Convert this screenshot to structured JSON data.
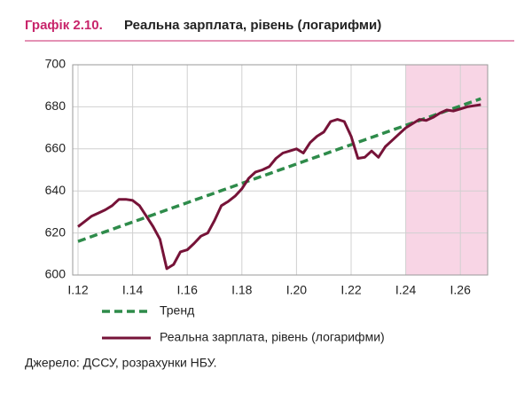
{
  "chart_data": {
    "type": "line",
    "title_label": "Графік 2.10.",
    "title": "Реальна зарплата, рівень (логарифми)",
    "source": "Джерело: ДССУ, розрахунки НБУ.",
    "categories": [
      "I.12",
      null,
      null,
      null,
      null,
      null,
      null,
      null,
      "I.14",
      null,
      null,
      null,
      null,
      null,
      null,
      null,
      "I.16",
      null,
      null,
      null,
      null,
      null,
      null,
      null,
      "I.18",
      null,
      null,
      null,
      null,
      null,
      null,
      null,
      "I.20",
      null,
      null,
      null,
      null,
      null,
      null,
      null,
      "I.22",
      null,
      null,
      null,
      null,
      null,
      null,
      null,
      "I.24",
      null,
      null,
      null,
      null,
      null,
      null,
      null,
      "I.26",
      null,
      null,
      null
    ],
    "series": [
      {
        "name": "Тренд",
        "color": "#2e8b4a",
        "dashed": true,
        "values": [
          616,
          617.15,
          618.3,
          619.45,
          620.6,
          621.75,
          622.9,
          624.05,
          625.2,
          626.35,
          627.5,
          628.65,
          629.8,
          630.95,
          632.1,
          633.25,
          634.4,
          635.55,
          636.7,
          637.85,
          639,
          640.15,
          641.3,
          642.45,
          643.6,
          644.75,
          645.9,
          647.05,
          648.2,
          649.35,
          650.5,
          651.65,
          652.8,
          653.95,
          655.1,
          656.25,
          657.4,
          658.55,
          659.7,
          660.85,
          662,
          663.15,
          664.3,
          665.45,
          666.6,
          667.75,
          668.9,
          670.05,
          671.2,
          672.35,
          673.5,
          674.65,
          675.8,
          676.95,
          678.1,
          679.25,
          680.4,
          681.55,
          682.7,
          683.85
        ]
      },
      {
        "name": "Реальна зарплата, рівень (логарифми)",
        "color": "#761338",
        "dashed": false,
        "values": [
          623,
          625.5,
          628,
          629.5,
          631,
          633,
          636,
          636,
          635.5,
          633,
          628,
          623,
          617,
          603,
          605,
          611,
          612,
          615,
          618.5,
          620,
          626,
          633,
          635,
          637.5,
          641,
          646,
          649,
          650,
          651.5,
          655.5,
          658,
          659,
          660,
          658,
          663,
          666,
          668,
          673,
          674,
          673,
          666,
          655.5,
          656,
          659,
          656,
          661,
          664,
          667,
          670,
          672,
          674,
          673.5,
          675,
          677,
          678.5,
          678,
          679,
          680,
          680.5,
          681
        ]
      }
    ],
    "shade_from_index": 48,
    "shade_color": "#f8d5e5",
    "ylim": [
      600,
      700
    ],
    "yticks": [
      600,
      620,
      640,
      660,
      680,
      700
    ],
    "grid": true
  }
}
